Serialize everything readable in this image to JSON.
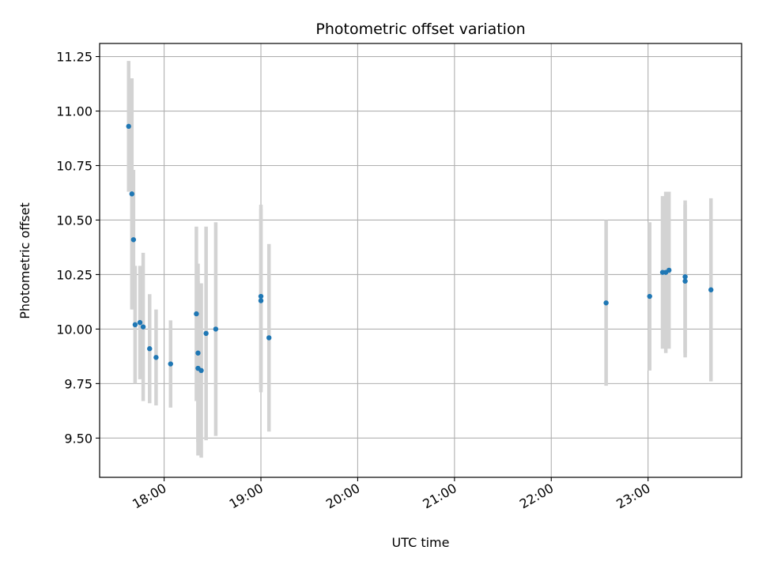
{
  "chart_data": {
    "type": "scatter",
    "title": "Photometric offset variation",
    "xlabel": "UTC time",
    "ylabel": "Photometric offset",
    "xlim": [
      "17:20",
      "23:58"
    ],
    "ylim": [
      9.32,
      11.31
    ],
    "x_ticks": [
      "18:00",
      "19:00",
      "20:00",
      "21:00",
      "22:00",
      "23:00"
    ],
    "y_ticks": [
      "9.50",
      "9.75",
      "10.00",
      "10.25",
      "10.50",
      "10.75",
      "11.00",
      "11.25"
    ],
    "grid": true,
    "colors": {
      "point": "#1f77b4",
      "errorbar": "#d3d3d3",
      "grid": "#b0b0b0"
    },
    "points": [
      {
        "x": "17:38",
        "y": 10.93,
        "err": 0.3
      },
      {
        "x": "17:40",
        "y": 10.62,
        "err": 0.53
      },
      {
        "x": "17:41",
        "y": 10.41,
        "err": 0.32
      },
      {
        "x": "17:42",
        "y": 10.02,
        "err": 0.27
      },
      {
        "x": "17:45",
        "y": 10.03,
        "err": 0.26
      },
      {
        "x": "17:47",
        "y": 10.01,
        "err": 0.34
      },
      {
        "x": "17:51",
        "y": 9.91,
        "err": 0.25
      },
      {
        "x": "17:55",
        "y": 9.87,
        "err": 0.22
      },
      {
        "x": "18:04",
        "y": 9.84,
        "err": 0.2
      },
      {
        "x": "18:20",
        "y": 10.07,
        "err": 0.4
      },
      {
        "x": "18:21",
        "y": 9.89,
        "err": 0.41
      },
      {
        "x": "18:21",
        "y": 9.82,
        "err": 0.4
      },
      {
        "x": "18:23",
        "y": 9.81,
        "err": 0.4
      },
      {
        "x": "18:26",
        "y": 9.98,
        "err": 0.49
      },
      {
        "x": "18:32",
        "y": 10.0,
        "err": 0.49
      },
      {
        "x": "19:00",
        "y": 10.13,
        "err": 0.42
      },
      {
        "x": "19:00",
        "y": 10.15,
        "err": 0.42
      },
      {
        "x": "19:05",
        "y": 9.96,
        "err": 0.43
      },
      {
        "x": "22:34",
        "y": 10.12,
        "err": 0.38
      },
      {
        "x": "23:01",
        "y": 10.15,
        "err": 0.34
      },
      {
        "x": "23:09",
        "y": 10.26,
        "err": 0.35
      },
      {
        "x": "23:11",
        "y": 10.26,
        "err": 0.37
      },
      {
        "x": "23:13",
        "y": 10.27,
        "err": 0.36
      },
      {
        "x": "23:23",
        "y": 10.22,
        "err": 0.35
      },
      {
        "x": "23:23",
        "y": 10.24,
        "err": 0.35
      },
      {
        "x": "23:39",
        "y": 10.18,
        "err": 0.42
      }
    ]
  }
}
